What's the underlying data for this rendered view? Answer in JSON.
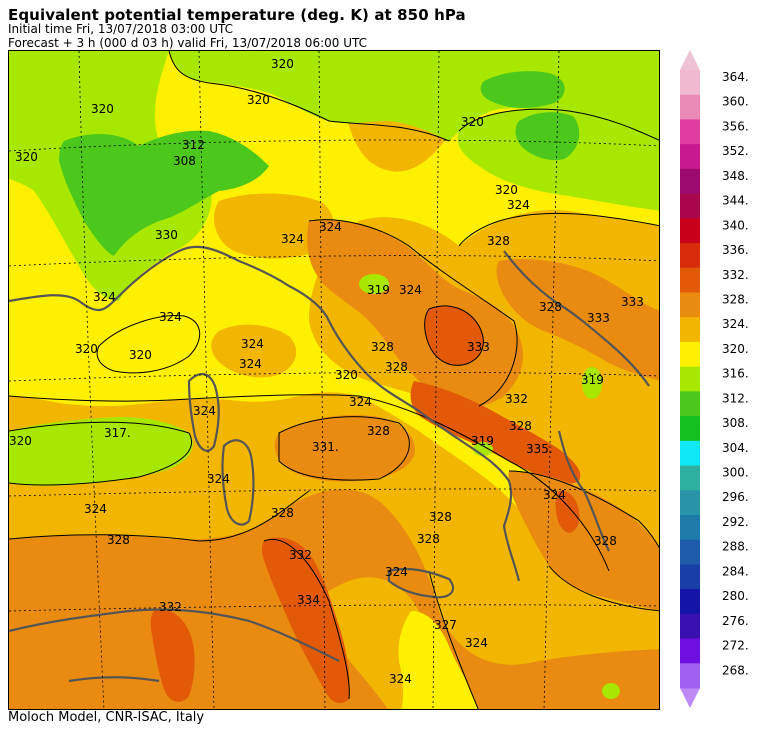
{
  "header": {
    "title": "Equivalent potential temperature (deg. K) at 850 hPa",
    "initial_time": "Initial time  Fri, 13/07/2018  03:00 UTC",
    "forecast": "Forecast  +   3 h  (000 d 03 h)  valid Fri, 13/07/2018 06:00 UTC"
  },
  "footer": {
    "credit": "Moloch Model, CNR-ISAC, Italy"
  },
  "colorbar": {
    "labels": [
      "364.",
      "360.",
      "356.",
      "352.",
      "348.",
      "344.",
      "340.",
      "336.",
      "332.",
      "328.",
      "324.",
      "320.",
      "316.",
      "312.",
      "308.",
      "304.",
      "300.",
      "296.",
      "292.",
      "288.",
      "284.",
      "280.",
      "276.",
      "272.",
      "268."
    ],
    "colors": [
      "#f0b9cf",
      "#e98ab7",
      "#e03da3",
      "#c8188f",
      "#9c0a6e",
      "#a8084b",
      "#c8001c",
      "#d82d0b",
      "#e25a08",
      "#e88b10",
      "#f2b600",
      "#fff000",
      "#a8e800",
      "#4cc81c",
      "#12c020",
      "#10e8f8",
      "#2eb0a0",
      "#2896a8",
      "#1e7aa8",
      "#1d5caa",
      "#1840a8",
      "#1414a8",
      "#3a10b0",
      "#7010e0",
      "#a060f0"
    ],
    "top_arrow_color": "#ecc2d4",
    "bottom_arrow_color": "#c08af6"
  },
  "map": {
    "field_colors": {
      "c316": "#a8e800",
      "c312": "#4cc81c",
      "c320": "#fff000",
      "c324": "#f2b600",
      "c328": "#e88b10",
      "c332": "#e25a08"
    },
    "contour_labels": {
      "l01": "320",
      "l02": "320",
      "l03": "320",
      "l04": "320",
      "l05": "308",
      "l06": "312",
      "l07": "320",
      "l08": "330",
      "l09": "324",
      "l10": "324",
      "l11": "320",
      "l12": "324",
      "l13": "319",
      "l14": "324",
      "l15": "328",
      "l16": "333",
      "l17": "328",
      "l18": "333",
      "l19": "320",
      "l20": "324",
      "l21": "328",
      "l22": "332",
      "l23": "319",
      "l24": "328",
      "l25": "324",
      "l26": "324",
      "l27": "320",
      "l28": "324",
      "l29": "317.",
      "l30": "331.",
      "l31": "319",
      "l32": "335.",
      "l33": "324",
      "l34": "328",
      "l35": "324",
      "l36": "328",
      "l37": "332",
      "l38": "334",
      "l39": "332",
      "l40": "328",
      "l41": "324",
      "l42": "328",
      "l43": "327",
      "l44": "324",
      "l45": "324",
      "l46": "324",
      "l47": "320",
      "l48": "328",
      "l49": "324",
      "l50": "328",
      "l51": "328",
      "l52": "324",
      "l53": "320",
      "l54": "333"
    }
  }
}
